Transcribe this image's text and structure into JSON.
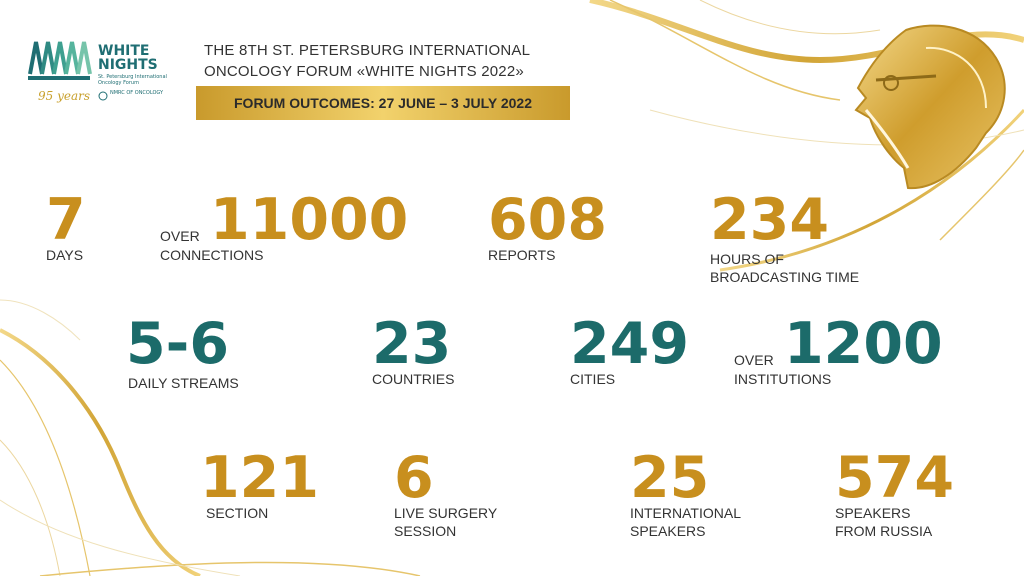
{
  "header": {
    "logo": {
      "line1": "WHITE",
      "line2": "NIGHTS",
      "sub": "St. Petersburg International Oncology Forum",
      "years": "95 years",
      "nmrc": "NMRC OF ONCOLOGY"
    },
    "title_line1": "THE 8TH ST. PETERSBURG INTERNATIONAL",
    "title_line2": "ONCOLOGY FORUM «WHITE NIGHTS 2022»",
    "banner": "FORUM OUTCOMES: 27 JUNE – 3 JULY 2022"
  },
  "stats": {
    "days": {
      "value": "7",
      "label": "DAYS"
    },
    "connections": {
      "prefix": "OVER",
      "value": "11000",
      "label": "CONNECTIONS"
    },
    "reports": {
      "value": "608",
      "label": "REPORTS"
    },
    "hours": {
      "value": "234",
      "label1": "HOURS OF",
      "label2": "BROADCASTING TIME"
    },
    "streams": {
      "value": "5-6",
      "label": "DAILY STREAMS"
    },
    "countries": {
      "value": "23",
      "label": "COUNTRIES"
    },
    "cities": {
      "value": "249",
      "label": "CITIES"
    },
    "institutions": {
      "prefix": "OVER",
      "value": "1200",
      "label": "INSTITUTIONS"
    },
    "section": {
      "value": "121",
      "label": "SECTION"
    },
    "surgery": {
      "value": "6",
      "label1": "LIVE SURGERY",
      "label2": "SESSION"
    },
    "intl_speakers": {
      "value": "25",
      "label1": "INTERNATIONAL",
      "label2": "SPEAKERS"
    },
    "russia_speakers": {
      "value": "574",
      "label1": "SPEAKERS",
      "label2": "FROM RUSSIA"
    }
  },
  "colors": {
    "gold": "#c88f1e",
    "teal": "#1c6b6a",
    "banner_light": "#f2d26c",
    "banner_dark": "#c99a2c"
  }
}
